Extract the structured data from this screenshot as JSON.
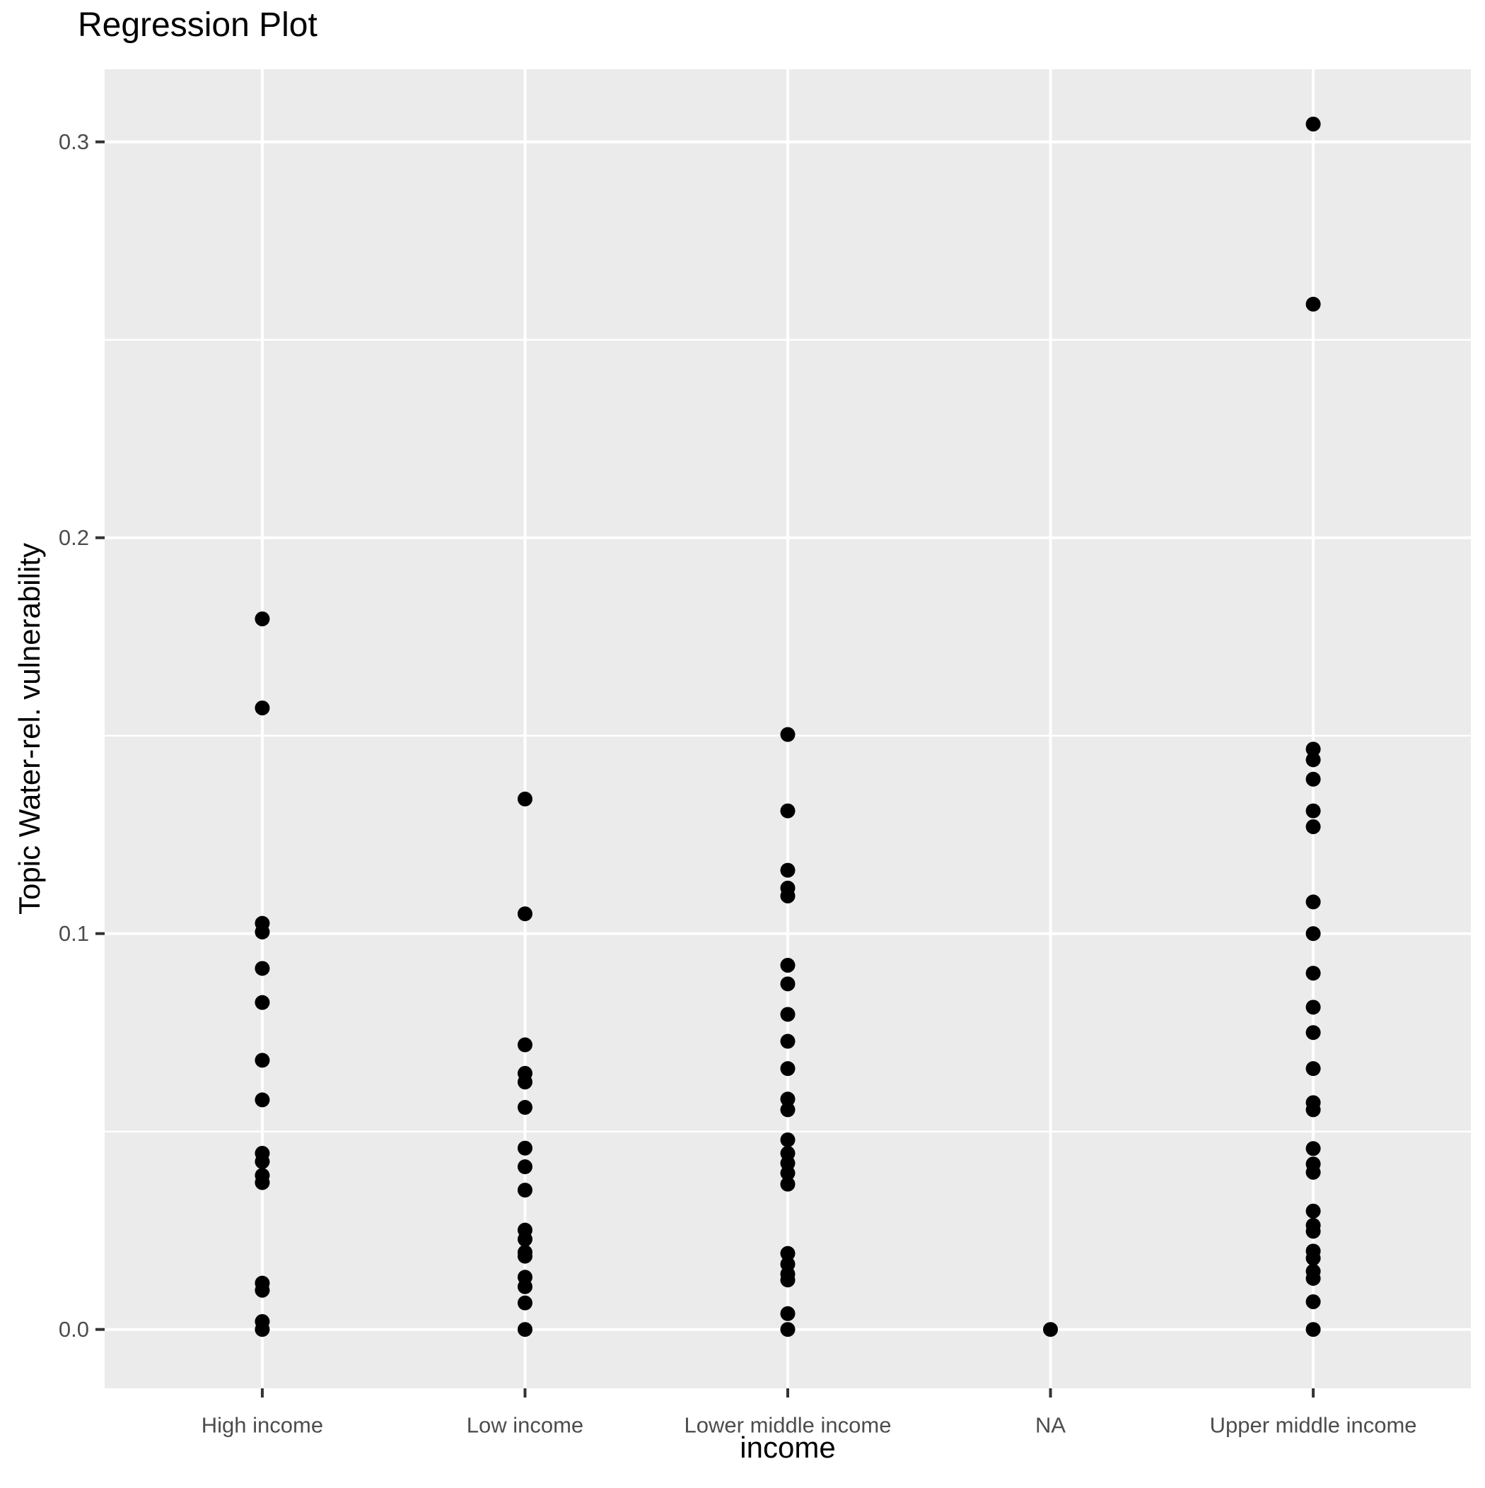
{
  "title": "Regression Plot",
  "axes": {
    "x": {
      "title": "income",
      "categories": [
        "High income",
        "Low income",
        "Lower middle income",
        "NA",
        "Upper middle income"
      ]
    },
    "y": {
      "title": "Topic Water-rel. vulnerability",
      "tick_labels": [
        "0.0",
        "0.1",
        "0.2",
        "0.3"
      ],
      "tick_values": [
        0.0,
        0.1,
        0.2,
        0.3
      ],
      "minor_tick_values": [
        0.05,
        0.15,
        0.25
      ]
    }
  },
  "chart_data": {
    "type": "scatter",
    "title": "Regression Plot",
    "xlabel": "income",
    "ylabel": "Topic Water-rel. vulnerability",
    "categories": [
      "High income",
      "Low income",
      "Lower middle income",
      "NA",
      "Upper middle income"
    ],
    "series": [
      {
        "name": "High income",
        "values": [
          0.1795,
          0.157,
          0.1026,
          0.1004,
          0.0912,
          0.0826,
          0.068,
          0.058,
          0.0445,
          0.0424,
          0.0389,
          0.0371,
          0.0117,
          0.0099,
          0.002,
          0.0
        ]
      },
      {
        "name": "Low income",
        "values": [
          0.134,
          0.105,
          0.0719,
          0.0647,
          0.0625,
          0.0561,
          0.0458,
          0.0411,
          0.0352,
          0.0251,
          0.0228,
          0.0195,
          0.0185,
          0.0132,
          0.0108,
          0.0067,
          0.0
        ]
      },
      {
        "name": "Lower middle income",
        "values": [
          0.1503,
          0.131,
          0.116,
          0.1115,
          0.1095,
          0.092,
          0.0873,
          0.0796,
          0.0728,
          0.0659,
          0.0582,
          0.0555,
          0.0479,
          0.0445,
          0.042,
          0.0395,
          0.0367,
          0.0192,
          0.0165,
          0.014,
          0.0125,
          0.004,
          0.0
        ]
      },
      {
        "name": "NA",
        "values": [
          0.0
        ]
      },
      {
        "name": "Upper middle income",
        "values": [
          0.3045,
          0.259,
          0.1466,
          0.1439,
          0.139,
          0.131,
          0.127,
          0.108,
          0.1,
          0.09,
          0.0814,
          0.075,
          0.0659,
          0.0573,
          0.0555,
          0.0457,
          0.0418,
          0.0397,
          0.0299,
          0.0263,
          0.0248,
          0.0198,
          0.018,
          0.0147,
          0.0129,
          0.007,
          0.0
        ]
      }
    ],
    "ylim": [
      0.0,
      0.3045
    ],
    "grid": "on",
    "legend": "none",
    "colors": {
      "point": "#000000",
      "panel_background": "#EBEBEB",
      "gridline": "#FFFFFF",
      "tick_label": "#4D4D4D",
      "axis_title": "#000000",
      "tick_mark": "#333333"
    }
  }
}
